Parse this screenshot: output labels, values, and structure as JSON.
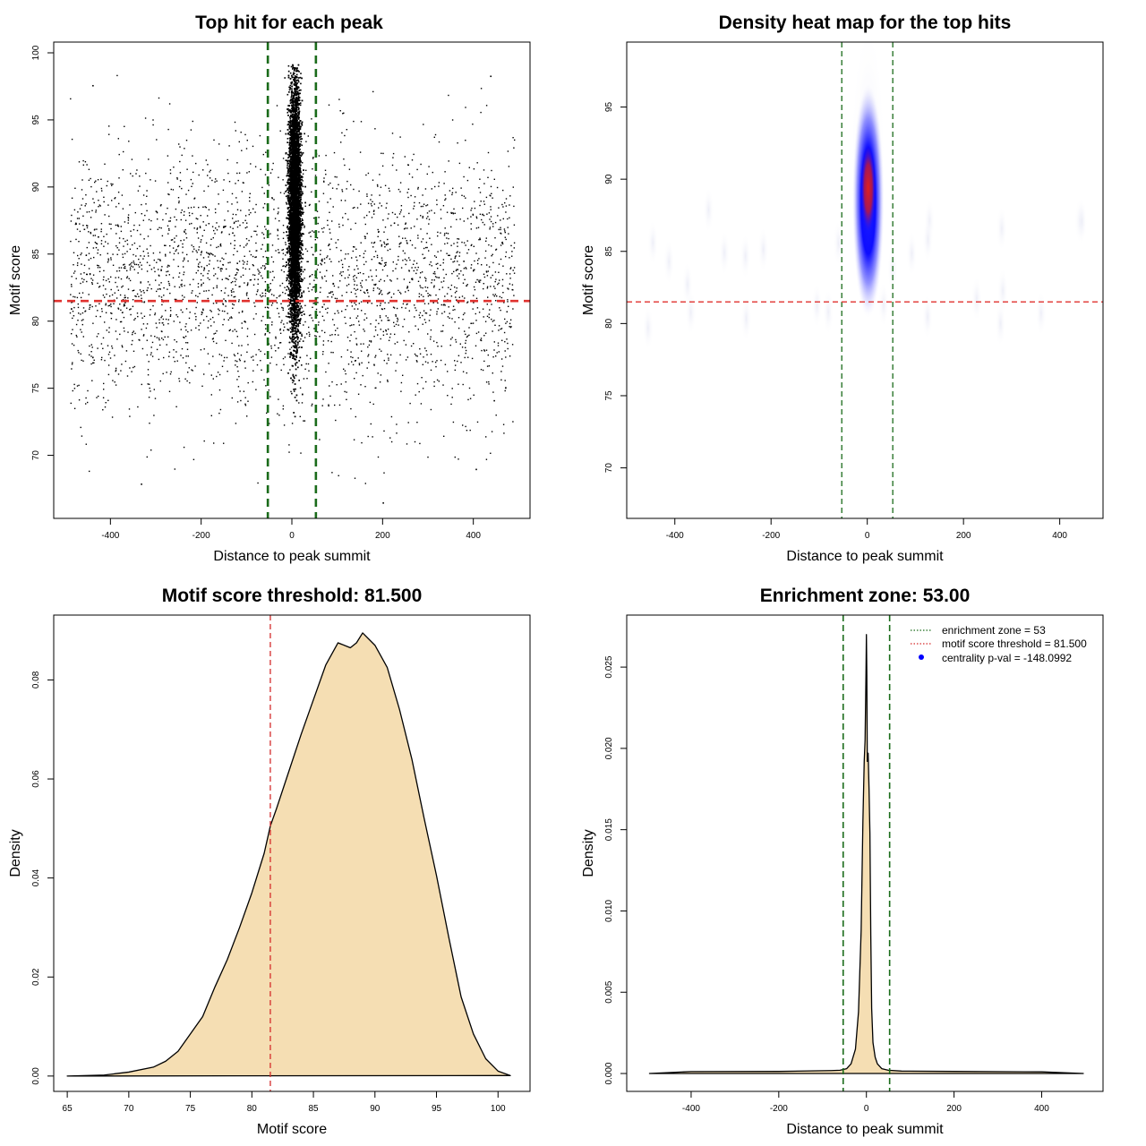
{
  "chart_data": [
    {
      "type": "scatter",
      "title": "Top hit for each peak",
      "xlabel": "Distance to peak summit",
      "ylabel": "Motif score",
      "xlim": [
        -525,
        525
      ],
      "ylim": [
        65.3,
        100.8
      ],
      "xticks": [
        -400,
        -200,
        0,
        200,
        400
      ],
      "yticks": [
        70,
        75,
        80,
        85,
        90,
        95,
        100
      ],
      "hlines": [
        {
          "y": 81.5,
          "color": "#e0312e",
          "style": "dashed"
        }
      ],
      "vlines": [
        {
          "x": -53,
          "color": "#1a6b1a",
          "style": "dashed"
        },
        {
          "x": 53,
          "color": "#1a6b1a",
          "style": "dashed"
        }
      ],
      "background_points": {
        "x_range": [
          -490,
          490
        ],
        "y_range": [
          67.5,
          98.5
        ],
        "approx_count": 3000
      },
      "central_cluster": {
        "x_range": [
          -20,
          30
        ],
        "y_range": [
          70.5,
          99.2
        ]
      },
      "outliers": [
        {
          "x": -333,
          "y": 67.9
        },
        {
          "x": 200,
          "y": 66.5
        },
        {
          "x": 437,
          "y": 98.3
        },
        {
          "x": 405,
          "y": 69.0
        },
        {
          "x": -440,
          "y": 97.6
        }
      ],
      "point_color": "#000000"
    },
    {
      "type": "heatmap",
      "title": "Density heat map for the top hits",
      "xlabel": "Distance to peak summit",
      "ylabel": "Motif score",
      "xlim": [
        -500,
        490
      ],
      "ylim": [
        66.5,
        99.5
      ],
      "xticks": [
        -400,
        -200,
        0,
        200,
        400
      ],
      "yticks": [
        70,
        75,
        80,
        85,
        90,
        95
      ],
      "hlines": [
        {
          "y": 81.5,
          "color": "#e0312e",
          "style": "dashed"
        }
      ],
      "vlines": [
        {
          "x": -53,
          "color": "#1a6b1a",
          "style": "dashed"
        },
        {
          "x": 53,
          "color": "#1a6b1a",
          "style": "dashed"
        }
      ],
      "hotspot": {
        "x": 2,
        "y": 89,
        "color_core": "#e0201e",
        "color_body": "#0000ff"
      }
    },
    {
      "type": "area",
      "title": "Motif score threshold: 81.500",
      "xlabel": "Motif score",
      "ylabel": "Density",
      "xlim": [
        63.9,
        102.6
      ],
      "ylim": [
        -0.0031,
        0.0931
      ],
      "xticks": [
        65,
        70,
        75,
        80,
        85,
        90,
        95,
        100
      ],
      "yticks": [
        0.0,
        0.02,
        0.04,
        0.06,
        0.08
      ],
      "ytick_labels": [
        "0.00",
        "0.02",
        "0.04",
        "0.06",
        "0.08"
      ],
      "vlines": [
        {
          "x": 81.5,
          "color": "#d42b2b",
          "style": "dashed"
        }
      ],
      "fill": "#f5deb3",
      "x": [
        65,
        68,
        70,
        72,
        73,
        74,
        75,
        76,
        77,
        78,
        79,
        80,
        81,
        81.5,
        82,
        83,
        84,
        85,
        86,
        87,
        88,
        88.5,
        89,
        90,
        91,
        92,
        93,
        94,
        95,
        96,
        97,
        98,
        99,
        100,
        101
      ],
      "y": [
        0.0,
        0.0002,
        0.0008,
        0.0018,
        0.003,
        0.005,
        0.0085,
        0.012,
        0.018,
        0.0235,
        0.03,
        0.037,
        0.045,
        0.0505,
        0.054,
        0.0615,
        0.069,
        0.076,
        0.083,
        0.0875,
        0.0865,
        0.0875,
        0.0895,
        0.087,
        0.0825,
        0.074,
        0.064,
        0.052,
        0.0405,
        0.028,
        0.016,
        0.0085,
        0.0035,
        0.001,
        0.0001
      ]
    },
    {
      "type": "area",
      "title": "Enrichment zone: 53.00",
      "xlabel": "Distance to peak summit",
      "ylabel": "Density",
      "xlim": [
        -547,
        540
      ],
      "ylim": [
        -0.0011,
        0.0282
      ],
      "xticks": [
        -400,
        -200,
        0,
        200,
        400
      ],
      "yticks": [
        0.0,
        0.005,
        0.01,
        0.015,
        0.02,
        0.025
      ],
      "ytick_labels": [
        "0.000",
        "0.005",
        "0.010",
        "0.015",
        "0.020",
        "0.025"
      ],
      "vlines": [
        {
          "x": -53,
          "color": "#1a6b1a",
          "style": "dashed"
        },
        {
          "x": 53,
          "color": "#1a6b1a",
          "style": "dashed"
        }
      ],
      "fill": "#f5deb3",
      "x": [
        -495,
        -400,
        -200,
        -80,
        -60,
        -45,
        -35,
        -25,
        -18,
        -12,
        -8,
        -5,
        -3,
        -1,
        0,
        1,
        2,
        4,
        6,
        8,
        10,
        12,
        15,
        20,
        25,
        35,
        50,
        80,
        200,
        400,
        495
      ],
      "y": [
        0.0,
        0.00012,
        0.00013,
        0.00018,
        0.0002,
        0.0003,
        0.0006,
        0.0015,
        0.0038,
        0.0088,
        0.0155,
        0.0192,
        0.0205,
        0.0245,
        0.027,
        0.0245,
        0.0192,
        0.0197,
        0.0175,
        0.0148,
        0.0085,
        0.004,
        0.0019,
        0.001,
        0.0006,
        0.0003,
        0.0002,
        0.00015,
        0.00013,
        0.0001,
        0.0
      ],
      "legend": {
        "placement": "top-right",
        "entries": [
          {
            "label": "enrichment zone = 53",
            "color": "#1a6b1a",
            "style": "dotted"
          },
          {
            "label": "motif score threshold = 81.500",
            "color": "#d42b2b",
            "style": "dotted"
          },
          {
            "label": "centrality p-val = -148.0992",
            "color": "#0000ff",
            "style": "point"
          }
        ]
      }
    }
  ]
}
